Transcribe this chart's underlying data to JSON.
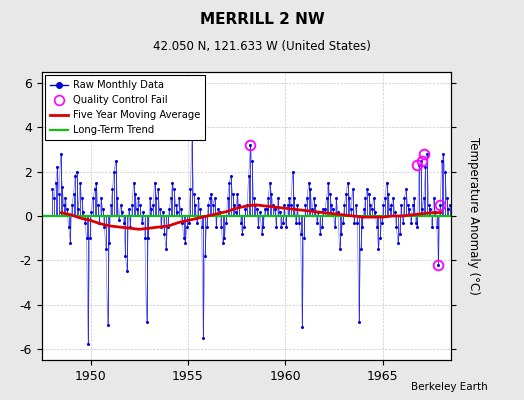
{
  "title": "MERRILL 2 NW",
  "subtitle": "42.050 N, 121.633 W (United States)",
  "ylabel": "Temperature Anomaly (°C)",
  "attribution": "Berkeley Earth",
  "xlim": [
    1947.5,
    1968.5
  ],
  "ylim": [
    -6.5,
    6.5
  ],
  "yticks": [
    -6,
    -4,
    -2,
    0,
    2,
    4,
    6
  ],
  "xticks": [
    1950,
    1955,
    1960,
    1965
  ],
  "raw_color": "#0000dd",
  "moving_avg_color": "#dd0000",
  "trend_color": "#00cc00",
  "qc_fail_color": "#ff00ff",
  "background_color": "#e8e8e8",
  "plot_bg_color": "#ffffff",
  "monthly_data_times": [
    1948.042,
    1948.125,
    1948.208,
    1948.292,
    1948.375,
    1948.458,
    1948.542,
    1948.625,
    1948.708,
    1948.792,
    1948.875,
    1948.958,
    1949.042,
    1949.125,
    1949.208,
    1949.292,
    1949.375,
    1949.458,
    1949.542,
    1949.625,
    1949.708,
    1949.792,
    1949.875,
    1949.958,
    1950.042,
    1950.125,
    1950.208,
    1950.292,
    1950.375,
    1950.458,
    1950.542,
    1950.625,
    1950.708,
    1950.792,
    1950.875,
    1950.958,
    1951.042,
    1951.125,
    1951.208,
    1951.292,
    1951.375,
    1951.458,
    1951.542,
    1951.625,
    1951.708,
    1951.792,
    1951.875,
    1951.958,
    1952.042,
    1952.125,
    1952.208,
    1952.292,
    1952.375,
    1952.458,
    1952.542,
    1952.625,
    1952.708,
    1952.792,
    1952.875,
    1952.958,
    1953.042,
    1953.125,
    1953.208,
    1953.292,
    1953.375,
    1953.458,
    1953.542,
    1953.625,
    1953.708,
    1953.792,
    1953.875,
    1953.958,
    1954.042,
    1954.125,
    1954.208,
    1954.292,
    1954.375,
    1954.458,
    1954.542,
    1954.625,
    1954.708,
    1954.792,
    1954.875,
    1954.958,
    1955.042,
    1955.125,
    1955.208,
    1955.292,
    1955.375,
    1955.458,
    1955.542,
    1955.625,
    1955.708,
    1955.792,
    1955.875,
    1955.958,
    1956.042,
    1956.125,
    1956.208,
    1956.292,
    1956.375,
    1956.458,
    1956.542,
    1956.625,
    1956.708,
    1956.792,
    1956.875,
    1956.958,
    1957.042,
    1957.125,
    1957.208,
    1957.292,
    1957.375,
    1957.458,
    1957.542,
    1957.625,
    1957.708,
    1957.792,
    1957.875,
    1957.958,
    1958.042,
    1958.125,
    1958.208,
    1958.292,
    1958.375,
    1958.458,
    1958.542,
    1958.625,
    1958.708,
    1958.792,
    1958.875,
    1958.958,
    1959.042,
    1959.125,
    1959.208,
    1959.292,
    1959.375,
    1959.458,
    1959.542,
    1959.625,
    1959.708,
    1959.792,
    1959.875,
    1959.958,
    1960.042,
    1960.125,
    1960.208,
    1960.292,
    1960.375,
    1960.458,
    1960.542,
    1960.625,
    1960.708,
    1960.792,
    1960.875,
    1960.958,
    1961.042,
    1961.125,
    1961.208,
    1961.292,
    1961.375,
    1961.458,
    1961.542,
    1961.625,
    1961.708,
    1961.792,
    1961.875,
    1961.958,
    1962.042,
    1962.125,
    1962.208,
    1962.292,
    1962.375,
    1962.458,
    1962.542,
    1962.625,
    1962.708,
    1962.792,
    1962.875,
    1962.958,
    1963.042,
    1963.125,
    1963.208,
    1963.292,
    1963.375,
    1963.458,
    1963.542,
    1963.625,
    1963.708,
    1963.792,
    1963.875,
    1963.958,
    1964.042,
    1964.125,
    1964.208,
    1964.292,
    1964.375,
    1964.458,
    1964.542,
    1964.625,
    1964.708,
    1964.792,
    1964.875,
    1964.958,
    1965.042,
    1965.125,
    1965.208,
    1965.292,
    1965.375,
    1965.458,
    1965.542,
    1965.625,
    1965.708,
    1965.792,
    1965.875,
    1965.958,
    1966.042,
    1966.125,
    1966.208,
    1966.292,
    1966.375,
    1966.458,
    1966.542,
    1966.625,
    1966.708,
    1966.792,
    1966.875,
    1966.958,
    1967.042,
    1967.125,
    1967.208,
    1967.292,
    1967.375,
    1967.458,
    1967.542,
    1967.625,
    1967.708,
    1967.792,
    1967.875,
    1967.958,
    1968.042,
    1968.125,
    1968.208,
    1968.292,
    1968.375,
    1968.458
  ],
  "monthly_data_values": [
    1.2,
    0.8,
    1.5,
    2.2,
    1.0,
    2.8,
    1.3,
    0.5,
    0.8,
    0.3,
    -0.5,
    -1.2,
    0.5,
    1.0,
    1.8,
    2.0,
    0.3,
    1.5,
    0.8,
    0.2,
    -0.3,
    -1.0,
    -5.8,
    -1.0,
    0.2,
    0.8,
    1.2,
    1.5,
    0.5,
    -0.3,
    0.8,
    0.3,
    -0.5,
    -1.5,
    -4.9,
    -1.2,
    0.5,
    1.2,
    2.0,
    2.5,
    0.8,
    -0.2,
    0.5,
    0.2,
    -0.3,
    -1.8,
    -2.5,
    0.3,
    -0.5,
    0.5,
    1.5,
    1.0,
    0.3,
    0.8,
    0.5,
    -0.3,
    0.2,
    -1.0,
    -4.8,
    -1.0,
    0.8,
    0.3,
    0.5,
    1.5,
    0.8,
    1.2,
    0.3,
    -0.5,
    0.2,
    -0.8,
    -1.5,
    -0.5,
    0.3,
    0.8,
    1.5,
    1.2,
    0.5,
    0.2,
    0.8,
    0.3,
    -0.3,
    -1.0,
    -1.2,
    -0.5,
    -0.3,
    1.2,
    3.5,
    1.0,
    0.5,
    -0.3,
    0.8,
    0.3,
    -0.5,
    -5.5,
    -1.8,
    -0.5,
    0.5,
    0.8,
    1.0,
    0.5,
    0.8,
    -0.5,
    0.3,
    0.2,
    -0.5,
    -1.2,
    -1.0,
    -0.3,
    0.8,
    1.5,
    1.8,
    1.0,
    0.5,
    0.2,
    1.0,
    0.5,
    -0.3,
    -0.8,
    -0.5,
    0.3,
    0.5,
    1.8,
    3.2,
    2.5,
    0.8,
    0.5,
    0.3,
    -0.5,
    0.2,
    -0.8,
    -0.5,
    0.3,
    0.3,
    0.8,
    1.5,
    1.0,
    0.5,
    0.3,
    -0.5,
    0.8,
    0.2,
    -0.5,
    -0.3,
    0.5,
    -0.5,
    0.5,
    0.8,
    0.5,
    2.0,
    0.8,
    -0.3,
    0.5,
    -0.3,
    -0.8,
    -5.0,
    -1.0,
    0.5,
    0.8,
    1.5,
    1.2,
    0.3,
    0.8,
    0.5,
    -0.3,
    0.2,
    -0.8,
    -0.5,
    0.3,
    0.3,
    0.8,
    1.5,
    1.0,
    0.5,
    0.3,
    -0.5,
    0.8,
    0.2,
    -1.5,
    -0.8,
    -0.3,
    0.5,
    1.0,
    1.5,
    0.8,
    0.3,
    1.2,
    -0.3,
    0.5,
    -0.3,
    -4.8,
    -1.5,
    -0.5,
    0.3,
    0.8,
    1.2,
    1.0,
    0.5,
    0.3,
    0.8,
    0.2,
    -0.5,
    -1.5,
    -1.0,
    -0.3,
    0.5,
    0.8,
    1.5,
    1.0,
    0.3,
    0.5,
    0.8,
    0.2,
    -0.5,
    -1.2,
    -0.8,
    0.5,
    -0.3,
    0.8,
    1.2,
    0.5,
    0.3,
    -0.3,
    0.5,
    0.8,
    -0.3,
    -0.5,
    2.3,
    2.5,
    0.3,
    0.8,
    2.2,
    2.8,
    0.5,
    0.3,
    -0.5,
    0.8,
    0.2,
    -0.5,
    -2.2,
    0.5,
    2.5,
    2.8,
    2.0,
    0.8,
    0.3,
    0.5
  ],
  "qc_fail_times": [
    1958.208,
    1966.792,
    1967.042,
    1967.125,
    1967.875,
    1967.958
  ],
  "qc_fail_values": [
    3.2,
    2.3,
    2.5,
    2.8,
    -2.2,
    0.5
  ],
  "moving_avg_times": [
    1948.5,
    1949.0,
    1949.5,
    1950.0,
    1950.5,
    1951.0,
    1951.5,
    1952.0,
    1952.5,
    1953.0,
    1953.5,
    1954.0,
    1954.5,
    1955.0,
    1955.5,
    1956.0,
    1956.5,
    1957.0,
    1957.5,
    1958.0,
    1958.5,
    1959.0,
    1959.5,
    1960.0,
    1960.5,
    1961.0,
    1961.5,
    1962.0,
    1962.5,
    1963.0,
    1963.5,
    1964.0,
    1964.5,
    1965.0,
    1965.5,
    1966.0,
    1966.5,
    1967.0,
    1967.5,
    1968.0
  ],
  "moving_avg_values": [
    0.15,
    0.05,
    -0.1,
    -0.2,
    -0.35,
    -0.45,
    -0.5,
    -0.55,
    -0.6,
    -0.55,
    -0.5,
    -0.45,
    -0.3,
    -0.2,
    -0.1,
    0.0,
    0.1,
    0.2,
    0.35,
    0.45,
    0.5,
    0.45,
    0.4,
    0.35,
    0.3,
    0.25,
    0.2,
    0.15,
    0.1,
    0.05,
    0.0,
    -0.05,
    -0.05,
    -0.05,
    0.0,
    0.0,
    0.05,
    0.1,
    0.15,
    0.15
  ],
  "trend_y": 0.0
}
